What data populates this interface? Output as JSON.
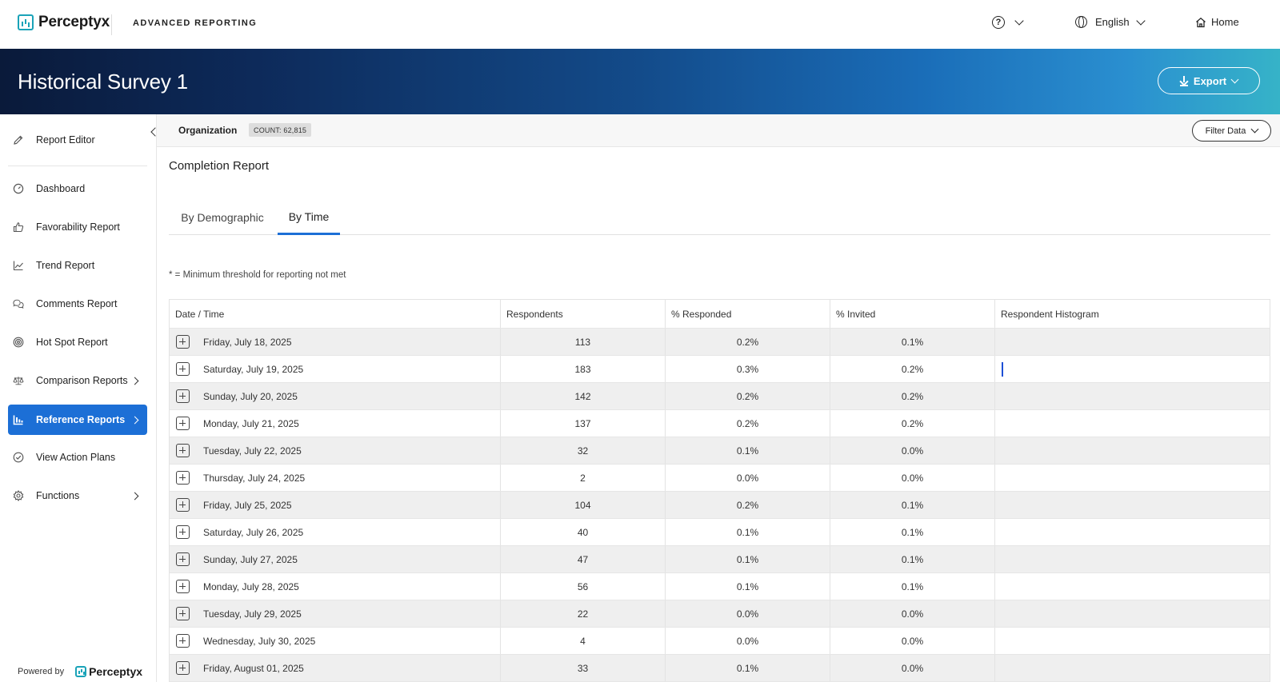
{
  "topbar": {
    "brand": "Perceptyx",
    "app_name": "ADVANCED REPORTING",
    "help_glyph": "?",
    "language": "English",
    "home_label": "Home"
  },
  "banner": {
    "title": "Historical Survey 1",
    "export_label": "Export"
  },
  "sidebar": {
    "items": [
      {
        "label": "Report Editor",
        "icon": "edit-icon"
      },
      {
        "label": "Dashboard",
        "icon": "gauge-icon"
      },
      {
        "label": "Favorability Report",
        "icon": "thumbs-up-icon"
      },
      {
        "label": "Trend Report",
        "icon": "trend-line-icon"
      },
      {
        "label": "Comments Report",
        "icon": "chat-bubbles-icon"
      },
      {
        "label": "Hot Spot Report",
        "icon": "target-icon"
      },
      {
        "label": "Comparison Reports",
        "icon": "scale-icon"
      },
      {
        "label": "Reference Reports",
        "icon": "bar-chart-icon"
      },
      {
        "label": "View Action Plans",
        "icon": "check-circle-icon"
      },
      {
        "label": "Functions",
        "icon": "gear-icon"
      }
    ],
    "powered_by": "Powered by",
    "powered_brand": "Perceptyx"
  },
  "filterbar": {
    "org_label": "Organization",
    "count": "COUNT: 62,815",
    "filter_label": "Filter Data"
  },
  "main": {
    "title": "Completion Report",
    "tabs": [
      {
        "label": "By Demographic",
        "active": false
      },
      {
        "label": "By Time",
        "active": true
      }
    ],
    "threshold_note": "* = Minimum threshold for reporting not met"
  },
  "table": {
    "columns": [
      "Date / Time",
      "Respondents",
      "% Responded",
      "% Invited",
      "Respondent Histogram"
    ],
    "rows": [
      {
        "date": "Friday, July 18, 2025",
        "respondents": "113",
        "responded": "0.2%",
        "invited": "0.1%"
      },
      {
        "date": "Saturday, July 19, 2025",
        "respondents": "183",
        "responded": "0.3%",
        "invited": "0.2%"
      },
      {
        "date": "Sunday, July 20, 2025",
        "respondents": "142",
        "responded": "0.2%",
        "invited": "0.2%"
      },
      {
        "date": "Monday, July 21, 2025",
        "respondents": "137",
        "responded": "0.2%",
        "invited": "0.2%"
      },
      {
        "date": "Tuesday, July 22, 2025",
        "respondents": "32",
        "responded": "0.1%",
        "invited": "0.0%"
      },
      {
        "date": "Thursday, July 24, 2025",
        "respondents": "2",
        "responded": "0.0%",
        "invited": "0.0%"
      },
      {
        "date": "Friday, July 25, 2025",
        "respondents": "104",
        "responded": "0.2%",
        "invited": "0.1%"
      },
      {
        "date": "Saturday, July 26, 2025",
        "respondents": "40",
        "responded": "0.1%",
        "invited": "0.1%"
      },
      {
        "date": "Sunday, July 27, 2025",
        "respondents": "47",
        "responded": "0.1%",
        "invited": "0.1%"
      },
      {
        "date": "Monday, July 28, 2025",
        "respondents": "56",
        "responded": "0.1%",
        "invited": "0.1%"
      },
      {
        "date": "Tuesday, July 29, 2025",
        "respondents": "22",
        "responded": "0.0%",
        "invited": "0.0%"
      },
      {
        "date": "Wednesday, July 30, 2025",
        "respondents": "4",
        "responded": "0.0%",
        "invited": "0.0%"
      },
      {
        "date": "Friday, August 01, 2025",
        "respondents": "33",
        "responded": "0.1%",
        "invited": "0.0%"
      }
    ]
  },
  "colors": {
    "accent": "#1c6fd6",
    "brand_teal": "#1aa3b8",
    "banner_dark": "#0a1a3a"
  }
}
